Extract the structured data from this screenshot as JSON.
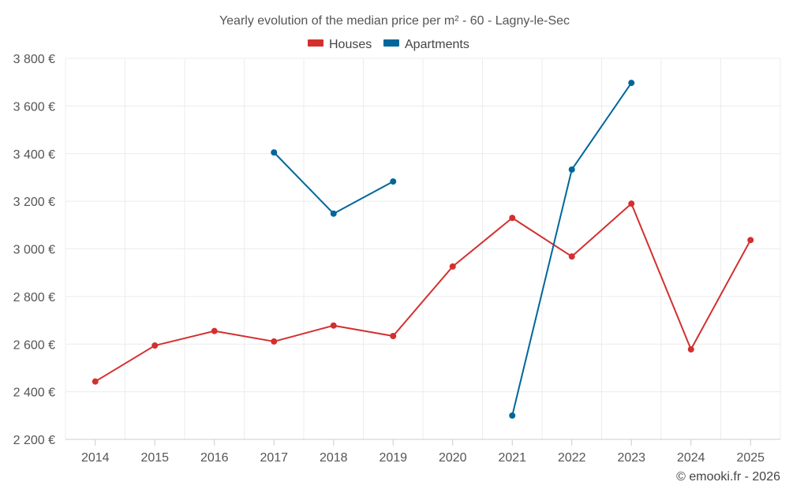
{
  "chart_data": {
    "type": "line",
    "title": "Yearly evolution of the median price per m² - 60 - Lagny-le-Sec",
    "categories": [
      "2014",
      "2015",
      "2016",
      "2017",
      "2018",
      "2019",
      "2020",
      "2021",
      "2022",
      "2023",
      "2024",
      "2025"
    ],
    "y_ticks": [
      "2 200 €",
      "2 400 €",
      "2 600 €",
      "2 800 €",
      "3 000 €",
      "3 200 €",
      "3 400 €",
      "3 600 €",
      "3 800 €"
    ],
    "ylim": [
      2200,
      3800
    ],
    "xlabel": "",
    "ylabel": "",
    "legend_position": "top-center",
    "series": [
      {
        "name": "Houses",
        "color": "#d32f2f",
        "values": [
          2443,
          2594,
          2655,
          2611,
          2678,
          2634,
          2926,
          3130,
          2968,
          3190,
          2578,
          3037
        ]
      },
      {
        "name": "Apartments",
        "color": "#00669b",
        "values": [
          null,
          null,
          null,
          3405,
          3148,
          3283,
          null,
          2300,
          3333,
          3697,
          null,
          null
        ]
      }
    ]
  },
  "credit": "© emooki.fr - 2026"
}
